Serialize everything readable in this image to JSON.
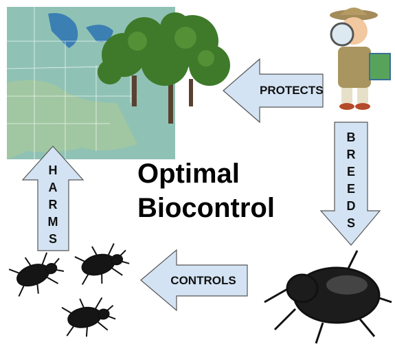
{
  "title": [
    "Optimal",
    "Biocontrol"
  ],
  "arrows": [
    {
      "label": "PROTECTS"
    },
    {
      "label": "BREEDS"
    },
    {
      "label": "CONTROLS"
    },
    {
      "label": "HARMS"
    }
  ]
}
